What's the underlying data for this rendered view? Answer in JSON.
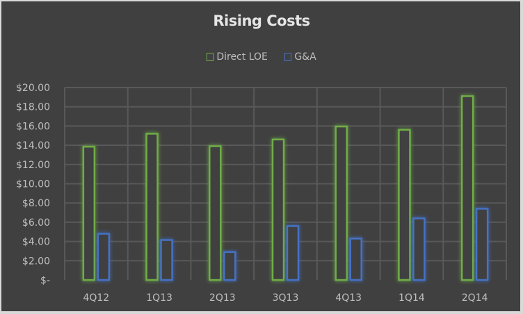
{
  "chart_data": {
    "type": "bar",
    "title": "Rising Costs",
    "xlabel": "",
    "ylabel": "",
    "categories": [
      "4Q12",
      "1Q13",
      "2Q13",
      "3Q13",
      "4Q13",
      "1Q14",
      "2Q14"
    ],
    "series": [
      {
        "name": "Direct LOE",
        "color": "#70ad47",
        "values": [
          13.85,
          15.2,
          13.9,
          14.6,
          15.95,
          15.6,
          19.1
        ]
      },
      {
        "name": "G&A",
        "color": "#4472c4",
        "values": [
          4.8,
          4.15,
          2.9,
          5.6,
          4.3,
          6.4,
          7.4
        ]
      }
    ],
    "ylim": [
      0,
      20
    ],
    "yticks": [
      0,
      2,
      4,
      6,
      8,
      10,
      12,
      14,
      16,
      18,
      20
    ],
    "ytick_labels": [
      "$-",
      "$2.00",
      "$4.00",
      "$6.00",
      "$8.00",
      "$10.00",
      "$12.00",
      "$14.00",
      "$16.00",
      "$18.00",
      "$20.00"
    ],
    "grid": true,
    "legend_position": "top"
  }
}
